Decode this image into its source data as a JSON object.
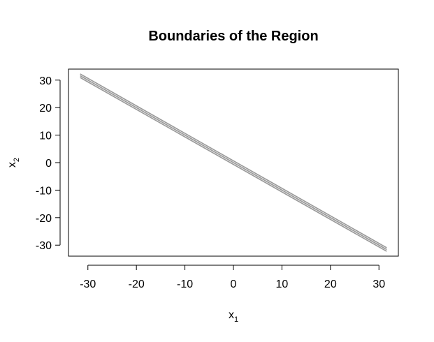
{
  "chart_data": {
    "type": "line",
    "title": "Boundaries of the Region",
    "xlabel": {
      "base": "x",
      "sub": "1"
    },
    "ylabel": {
      "base": "x",
      "sub": "2"
    },
    "xlim": [
      -34,
      34
    ],
    "ylim": [
      -34,
      34
    ],
    "x_ticks": [
      -30,
      -20,
      -10,
      0,
      10,
      20,
      30
    ],
    "y_ticks": [
      -30,
      -20,
      -10,
      0,
      10,
      20,
      30
    ],
    "grid": false,
    "line_color": "#999999",
    "series": [
      {
        "points": [
          [
            -31.6,
            31.6
          ],
          [
            31.6,
            -31.6
          ]
        ]
      },
      {
        "points": [
          [
            -31.6,
            31.6
          ],
          [
            -1.5,
            1.5
          ],
          [
            31.6,
            -31.6
          ]
        ]
      },
      {
        "points": [
          [
            -31.6,
            31.6
          ],
          [
            31.6,
            -31.6
          ]
        ]
      }
    ]
  }
}
